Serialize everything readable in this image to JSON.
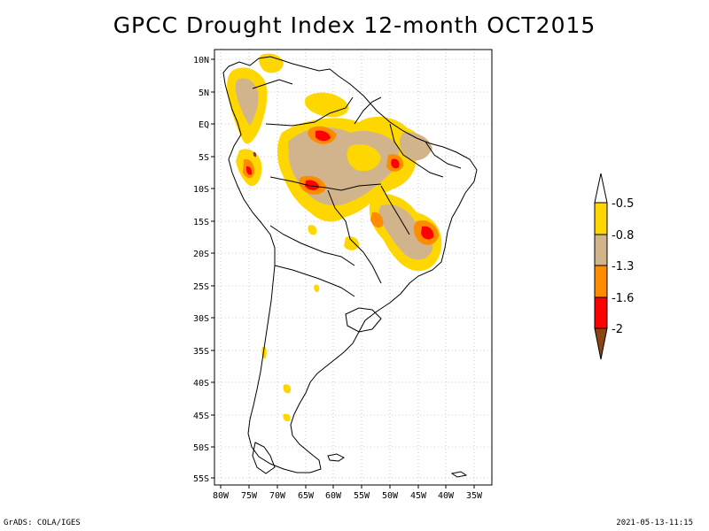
{
  "title": "GPCC Drought Index 12-month OCT2015",
  "footer": {
    "left": "GrADS: COLA/IGES",
    "right": "2021-05-13-11:15"
  },
  "colors": {
    "yellow": "#ffd700",
    "tan": "#d2b48c",
    "orange": "#ff8c00",
    "red": "#ff0000",
    "brown": "#8b4513",
    "land_line": "#000000"
  },
  "lat_labels": [
    "10N",
    "5N",
    "EQ",
    "5S",
    "10S",
    "15S",
    "20S",
    "25S",
    "30S",
    "35S",
    "40S",
    "45S",
    "50S",
    "55S"
  ],
  "lon_labels": [
    "80W",
    "75W",
    "70W",
    "65W",
    "60W",
    "55W",
    "50W",
    "45W",
    "40W",
    "35W"
  ],
  "colorbar": {
    "labels": [
      "-0.5",
      "-0.8",
      "-1.3",
      "-1.6",
      "-2"
    ],
    "bands": [
      "#ffd700",
      "#d2b48c",
      "#ff8c00",
      "#ff0000"
    ]
  }
}
